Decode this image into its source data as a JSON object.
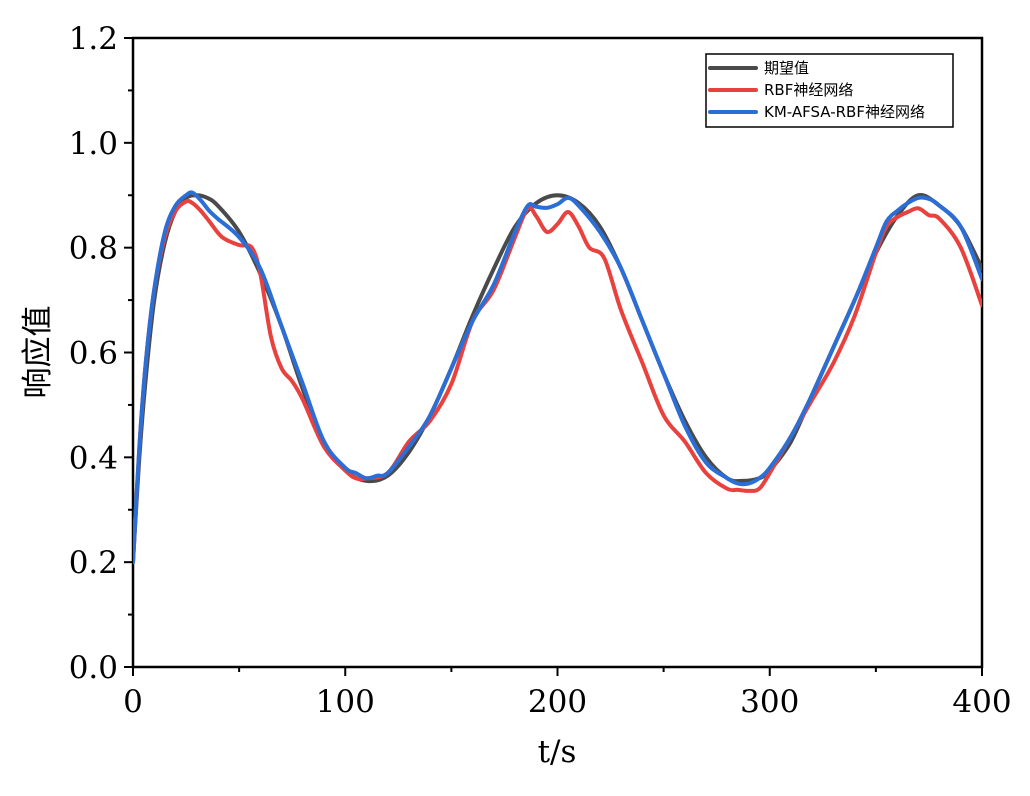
{
  "chart_data": {
    "type": "line",
    "xlabel": "t/s",
    "ylabel": "响应值",
    "xlim": [
      0,
      400
    ],
    "ylim": [
      0,
      1.2
    ],
    "xticks": [
      0,
      100,
      200,
      300,
      400
    ],
    "yticks": [
      0.0,
      0.2,
      0.4,
      0.6,
      0.8,
      1.0,
      1.2
    ],
    "xtick_labels": [
      "0",
      "100",
      "200",
      "300",
      "400"
    ],
    "ytick_labels": [
      "0.0",
      "0.2",
      "0.4",
      "0.6",
      "0.8",
      "1.0",
      "1.2"
    ],
    "grid": false,
    "legend_position": "top-right",
    "series": [
      {
        "name": "期望值",
        "color": "#4a4a4a",
        "x": [
          0,
          3,
          6,
          10,
          15,
          20,
          25,
          30,
          35,
          40,
          50,
          60,
          70,
          80,
          90,
          100,
          110,
          120,
          130,
          140,
          150,
          160,
          170,
          180,
          190,
          200,
          210,
          220,
          230,
          240,
          250,
          260,
          270,
          280,
          287,
          295,
          300,
          310,
          320,
          330,
          340,
          350,
          360,
          370,
          380,
          390,
          400
        ],
        "y": [
          0.2,
          0.4,
          0.55,
          0.7,
          0.81,
          0.87,
          0.895,
          0.9,
          0.895,
          0.88,
          0.83,
          0.75,
          0.65,
          0.53,
          0.43,
          0.375,
          0.355,
          0.365,
          0.41,
          0.48,
          0.57,
          0.67,
          0.76,
          0.84,
          0.885,
          0.9,
          0.885,
          0.84,
          0.76,
          0.66,
          0.56,
          0.47,
          0.4,
          0.36,
          0.355,
          0.36,
          0.375,
          0.43,
          0.52,
          0.61,
          0.7,
          0.79,
          0.86,
          0.9,
          0.88,
          0.84,
          0.76
        ]
      },
      {
        "name": "RBF神经网络",
        "color": "#e8413e",
        "x": [
          0,
          3,
          6,
          10,
          15,
          20,
          25,
          28,
          32,
          36,
          42,
          50,
          56,
          60,
          65,
          70,
          75,
          80,
          90,
          100,
          105,
          110,
          120,
          130,
          140,
          150,
          160,
          170,
          180,
          186,
          190,
          195,
          200,
          205,
          210,
          215,
          222,
          230,
          240,
          250,
          260,
          270,
          280,
          285,
          290,
          295,
          300,
          310,
          320,
          330,
          340,
          350,
          355,
          360,
          365,
          370,
          375,
          380,
          390,
          400
        ],
        "y": [
          0.2,
          0.42,
          0.58,
          0.72,
          0.82,
          0.87,
          0.888,
          0.885,
          0.87,
          0.85,
          0.82,
          0.805,
          0.8,
          0.75,
          0.63,
          0.57,
          0.545,
          0.51,
          0.42,
          0.375,
          0.36,
          0.36,
          0.37,
          0.43,
          0.47,
          0.54,
          0.66,
          0.72,
          0.82,
          0.875,
          0.86,
          0.83,
          0.845,
          0.868,
          0.84,
          0.8,
          0.78,
          0.68,
          0.58,
          0.48,
          0.43,
          0.37,
          0.34,
          0.338,
          0.336,
          0.34,
          0.37,
          0.44,
          0.51,
          0.58,
          0.67,
          0.79,
          0.84,
          0.858,
          0.868,
          0.875,
          0.862,
          0.855,
          0.8,
          0.69
        ]
      },
      {
        "name": "KM-AFSA-RBF神经网络",
        "color": "#2b6fd6",
        "x": [
          0,
          3,
          6,
          10,
          15,
          20,
          25,
          28,
          32,
          36,
          40,
          50,
          60,
          70,
          80,
          90,
          100,
          105,
          110,
          115,
          120,
          130,
          140,
          150,
          160,
          170,
          180,
          186,
          190,
          195,
          200,
          205,
          210,
          220,
          230,
          240,
          250,
          260,
          270,
          280,
          285,
          290,
          295,
          300,
          310,
          320,
          330,
          340,
          350,
          355,
          360,
          365,
          370,
          375,
          380,
          390,
          400
        ],
        "y": [
          0.2,
          0.42,
          0.58,
          0.72,
          0.83,
          0.88,
          0.9,
          0.905,
          0.89,
          0.87,
          0.855,
          0.82,
          0.76,
          0.65,
          0.54,
          0.43,
          0.38,
          0.37,
          0.36,
          0.365,
          0.37,
          0.42,
          0.48,
          0.57,
          0.66,
          0.73,
          0.83,
          0.88,
          0.878,
          0.876,
          0.883,
          0.895,
          0.88,
          0.83,
          0.76,
          0.66,
          0.56,
          0.46,
          0.39,
          0.36,
          0.35,
          0.35,
          0.36,
          0.38,
          0.44,
          0.52,
          0.61,
          0.7,
          0.8,
          0.85,
          0.87,
          0.885,
          0.895,
          0.893,
          0.88,
          0.84,
          0.74
        ]
      }
    ]
  }
}
